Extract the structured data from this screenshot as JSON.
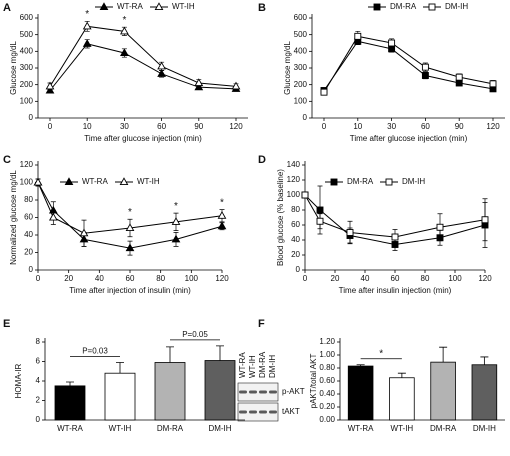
{
  "chart_data": [
    {
      "type": "line",
      "panel": "A",
      "ylabel": "Glucose mg/dL",
      "xlabel": "Time after glucose injection (min)",
      "categories": [
        "0",
        "10",
        "30",
        "60",
        "90",
        "120"
      ],
      "ylim": [
        0,
        600
      ],
      "yticks": [
        0,
        100,
        200,
        300,
        400,
        500,
        600
      ],
      "legend": "top",
      "series": [
        {
          "name": "WT-RA",
          "color": "#000000",
          "marker": "triangle",
          "filled": true,
          "values": [
            165,
            445,
            390,
            265,
            185,
            175
          ],
          "errors": [
            15,
            25,
            25,
            20,
            15,
            15
          ]
        },
        {
          "name": "WT-IH",
          "color": "#000000",
          "marker": "triangle",
          "filled": false,
          "values": [
            190,
            550,
            520,
            310,
            210,
            190
          ],
          "errors": [
            20,
            30,
            25,
            25,
            20,
            15
          ]
        }
      ],
      "annotations": [
        {
          "text": "*",
          "x": "10"
        },
        {
          "text": "*",
          "x": "30"
        }
      ]
    },
    {
      "type": "line",
      "panel": "B",
      "ylabel": "Glucose mg/dL",
      "xlabel": "Time after glucose injection (min)",
      "categories": [
        "0",
        "10",
        "30",
        "60",
        "90",
        "120"
      ],
      "ylim": [
        0,
        600
      ],
      "yticks": [
        0,
        100,
        200,
        300,
        400,
        500,
        600
      ],
      "legend": "top",
      "series": [
        {
          "name": "DM-RA",
          "color": "#000000",
          "marker": "square",
          "filled": true,
          "values": [
            165,
            460,
            415,
            255,
            210,
            175
          ],
          "errors": [
            15,
            20,
            20,
            20,
            15,
            15
          ]
        },
        {
          "name": "DM-IH",
          "color": "#000000",
          "marker": "square",
          "filled": false,
          "values": [
            155,
            490,
            450,
            305,
            245,
            205
          ],
          "errors": [
            15,
            30,
            25,
            25,
            20,
            20
          ]
        }
      ]
    },
    {
      "type": "line",
      "panel": "C",
      "ylabel": "Normalized glucose mg/dL",
      "xlabel": "Time after injection of insulin (min)",
      "x": [
        0,
        10,
        30,
        60,
        90,
        120
      ],
      "xlim": [
        0,
        120
      ],
      "xticks": [
        0,
        20,
        40,
        60,
        80,
        100,
        120
      ],
      "ylim": [
        0,
        120
      ],
      "yticks": [
        0,
        20,
        40,
        60,
        80,
        100,
        120
      ],
      "legend": "upper left",
      "series": [
        {
          "name": "WT-RA",
          "color": "#000000",
          "marker": "triangle",
          "filled": true,
          "values": [
            100,
            68,
            35,
            25,
            35,
            50
          ],
          "errors": [
            4,
            10,
            8,
            8,
            8,
            4
          ]
        },
        {
          "name": "WT-IH",
          "color": "#000000",
          "marker": "triangle",
          "filled": false,
          "values": [
            100,
            60,
            42,
            48,
            55,
            62
          ],
          "errors": [
            4,
            8,
            15,
            10,
            10,
            7
          ]
        }
      ],
      "annotations": [
        {
          "text": "*",
          "x": 60
        },
        {
          "text": "*",
          "x": 90
        },
        {
          "text": "*",
          "x": 120
        }
      ]
    },
    {
      "type": "line",
      "panel": "D",
      "ylabel": "Blood glucose (% baseline)",
      "xlabel": "Time after insulin injection (min)",
      "x": [
        0,
        10,
        30,
        60,
        90,
        120
      ],
      "xlim": [
        0,
        120
      ],
      "xticks": [
        0,
        20,
        40,
        60,
        80,
        100,
        120
      ],
      "ylim": [
        0,
        140
      ],
      "yticks": [
        0,
        20,
        40,
        60,
        80,
        100,
        120,
        140
      ],
      "legend": "upper left",
      "series": [
        {
          "name": "DM-RA",
          "color": "#000000",
          "marker": "square",
          "filled": true,
          "values": [
            100,
            80,
            46,
            34,
            43,
            60
          ],
          "errors": [
            4,
            32,
            10,
            8,
            10,
            30
          ]
        },
        {
          "name": "DM-IH",
          "color": "#000000",
          "marker": "square",
          "filled": false,
          "values": [
            100,
            65,
            50,
            44,
            57,
            67
          ],
          "errors": [
            4,
            10,
            15,
            10,
            18,
            28
          ]
        }
      ]
    },
    {
      "type": "bar",
      "panel": "E",
      "ylabel": "HOMA-IR",
      "categories": [
        "WT-RA",
        "WT-IH",
        "DM-RA",
        "DM-IH"
      ],
      "values": [
        3.5,
        4.8,
        5.9,
        6.1
      ],
      "errors": [
        0.4,
        1.1,
        1.6,
        1.5
      ],
      "colors": [
        "#000000",
        "#ffffff",
        "#b3b3b3",
        "#5f5f5f"
      ],
      "ylim": [
        0,
        8
      ],
      "yticks": [
        0,
        2,
        4,
        6,
        8
      ],
      "annotations": [
        {
          "text": "P=0.03",
          "from": "WT-RA",
          "to": "WT-IH"
        },
        {
          "text": "P=0.05",
          "from": "DM-RA",
          "to": "DM-IH"
        }
      ]
    },
    {
      "type": "bar",
      "panel": "F",
      "ylabel": "pAKT/total AKT",
      "categories": [
        "WT-RA",
        "WT-IH",
        "DM-RA",
        "DM-IH"
      ],
      "values": [
        0.83,
        0.65,
        0.89,
        0.85
      ],
      "errors": [
        0.02,
        0.07,
        0.23,
        0.12
      ],
      "colors": [
        "#000000",
        "#ffffff",
        "#b3b3b3",
        "#5f5f5f"
      ],
      "ylim": [
        0,
        1.2
      ],
      "yticks": [
        {
          "value": 0,
          "label": "0.00"
        },
        {
          "value": 0.2,
          "label": "0.20"
        },
        {
          "value": 0.4,
          "label": "0.40"
        },
        {
          "value": 0.6,
          "label": "0.60"
        },
        {
          "value": 0.8,
          "label": "0.80"
        },
        {
          "value": 1.0,
          "label": "1.00"
        },
        {
          "value": 1.2,
          "label": "1.20"
        }
      ],
      "annotations": [
        {
          "text": "*",
          "from": "WT-RA",
          "to": "WT-IH"
        }
      ]
    }
  ],
  "blot": {
    "lanes": [
      "WT-RA",
      "WT-IH",
      "DM-RA",
      "DM-IH"
    ],
    "bands": [
      "p-AKT",
      "tAKT"
    ]
  }
}
